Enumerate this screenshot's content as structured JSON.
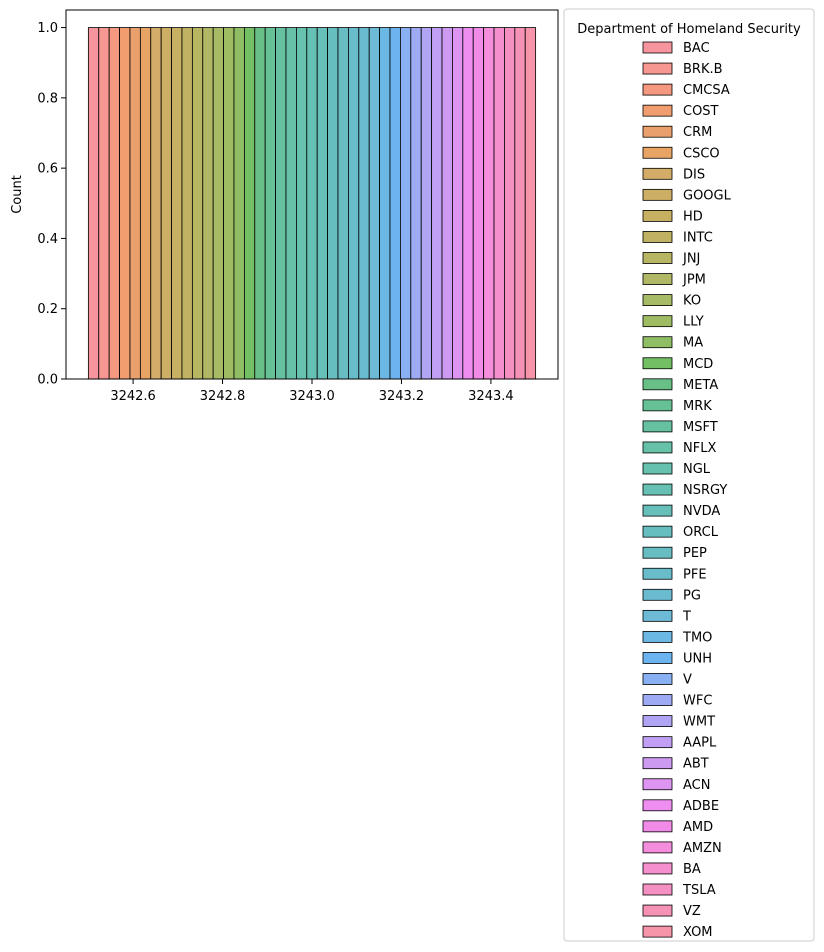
{
  "chart_data": {
    "type": "bar",
    "subtype": "histogram",
    "ylabel": "Count",
    "xlabel": "",
    "xlim": [
      3242.45,
      3243.55
    ],
    "ylim": [
      0,
      1.05
    ],
    "x_ticks": [
      "3242.6",
      "3242.8",
      "3243.0",
      "3243.2",
      "3243.4"
    ],
    "x_tick_values": [
      3242.6,
      3242.8,
      3243.0,
      3243.2,
      3243.4
    ],
    "y_ticks": [
      "0.0",
      "0.2",
      "0.4",
      "0.6",
      "0.8",
      "1.0"
    ],
    "y_tick_values": [
      0.0,
      0.2,
      0.4,
      0.6,
      0.8,
      1.0
    ],
    "bins": [
      3242.5,
      3243.5
    ],
    "legend": {
      "title": "Department of Homeland Security",
      "placement": "outside-right"
    },
    "series": [
      {
        "name": "BAC",
        "value": 1,
        "color": "#f7959e"
      },
      {
        "name": "BRK.B",
        "value": 1,
        "color": "#f79792"
      },
      {
        "name": "CMCSA",
        "value": 1,
        "color": "#f4987f"
      },
      {
        "name": "COST",
        "value": 1,
        "color": "#f29d6f"
      },
      {
        "name": "CRM",
        "value": 1,
        "color": "#e9a06c"
      },
      {
        "name": "CSCO",
        "value": 1,
        "color": "#e8a465"
      },
      {
        "name": "DIS",
        "value": 1,
        "color": "#d3ad68"
      },
      {
        "name": "GOOGL",
        "value": 1,
        "color": "#ccae64"
      },
      {
        "name": "HD",
        "value": 1,
        "color": "#c7b062"
      },
      {
        "name": "INTC",
        "value": 1,
        "color": "#bfb262"
      },
      {
        "name": "JNJ",
        "value": 1,
        "color": "#b8b563"
      },
      {
        "name": "JPM",
        "value": 1,
        "color": "#b0b866"
      },
      {
        "name": "KO",
        "value": 1,
        "color": "#a7bb67"
      },
      {
        "name": "LLY",
        "value": 1,
        "color": "#9fbc63"
      },
      {
        "name": "MA",
        "value": 1,
        "color": "#8fbe64"
      },
      {
        "name": "MCD",
        "value": 1,
        "color": "#72c063"
      },
      {
        "name": "META",
        "value": 1,
        "color": "#69c087"
      },
      {
        "name": "MRK",
        "value": 1,
        "color": "#66c197"
      },
      {
        "name": "MSFT",
        "value": 1,
        "color": "#66c1a1"
      },
      {
        "name": "NFLX",
        "value": 1,
        "color": "#66c1a8"
      },
      {
        "name": "NGL",
        "value": 1,
        "color": "#66c1ae"
      },
      {
        "name": "NSRGY",
        "value": 1,
        "color": "#66c0b3"
      },
      {
        "name": "NVDA",
        "value": 1,
        "color": "#66bfb8"
      },
      {
        "name": "ORCL",
        "value": 1,
        "color": "#67bebe"
      },
      {
        "name": "PEP",
        "value": 1,
        "color": "#68bdc3"
      },
      {
        "name": "PFE",
        "value": 1,
        "color": "#69bcc9"
      },
      {
        "name": "PG",
        "value": 1,
        "color": "#6abbcf"
      },
      {
        "name": "T",
        "value": 1,
        "color": "#6dbad6"
      },
      {
        "name": "TMO",
        "value": 1,
        "color": "#6ab8e3"
      },
      {
        "name": "UNH",
        "value": 1,
        "color": "#6bb4f0"
      },
      {
        "name": "V",
        "value": 1,
        "color": "#8ab0f4"
      },
      {
        "name": "WFC",
        "value": 1,
        "color": "#9eabf4"
      },
      {
        "name": "WMT",
        "value": 1,
        "color": "#afa5f4"
      },
      {
        "name": "AAPL",
        "value": 1,
        "color": "#c09ff4"
      },
      {
        "name": "ABT",
        "value": 1,
        "color": "#cd9af2"
      },
      {
        "name": "ACN",
        "value": 1,
        "color": "#dd95f1"
      },
      {
        "name": "ADBE",
        "value": 1,
        "color": "#ed8ef0"
      },
      {
        "name": "AMD",
        "value": 1,
        "color": "#f28be7"
      },
      {
        "name": "AMZN",
        "value": 1,
        "color": "#f48ddb"
      },
      {
        "name": "BA",
        "value": 1,
        "color": "#f58fcd"
      },
      {
        "name": "TSLA",
        "value": 1,
        "color": "#f590c2"
      },
      {
        "name": "VZ",
        "value": 1,
        "color": "#f592b6"
      },
      {
        "name": "XOM",
        "value": 1,
        "color": "#f694a9"
      }
    ]
  }
}
